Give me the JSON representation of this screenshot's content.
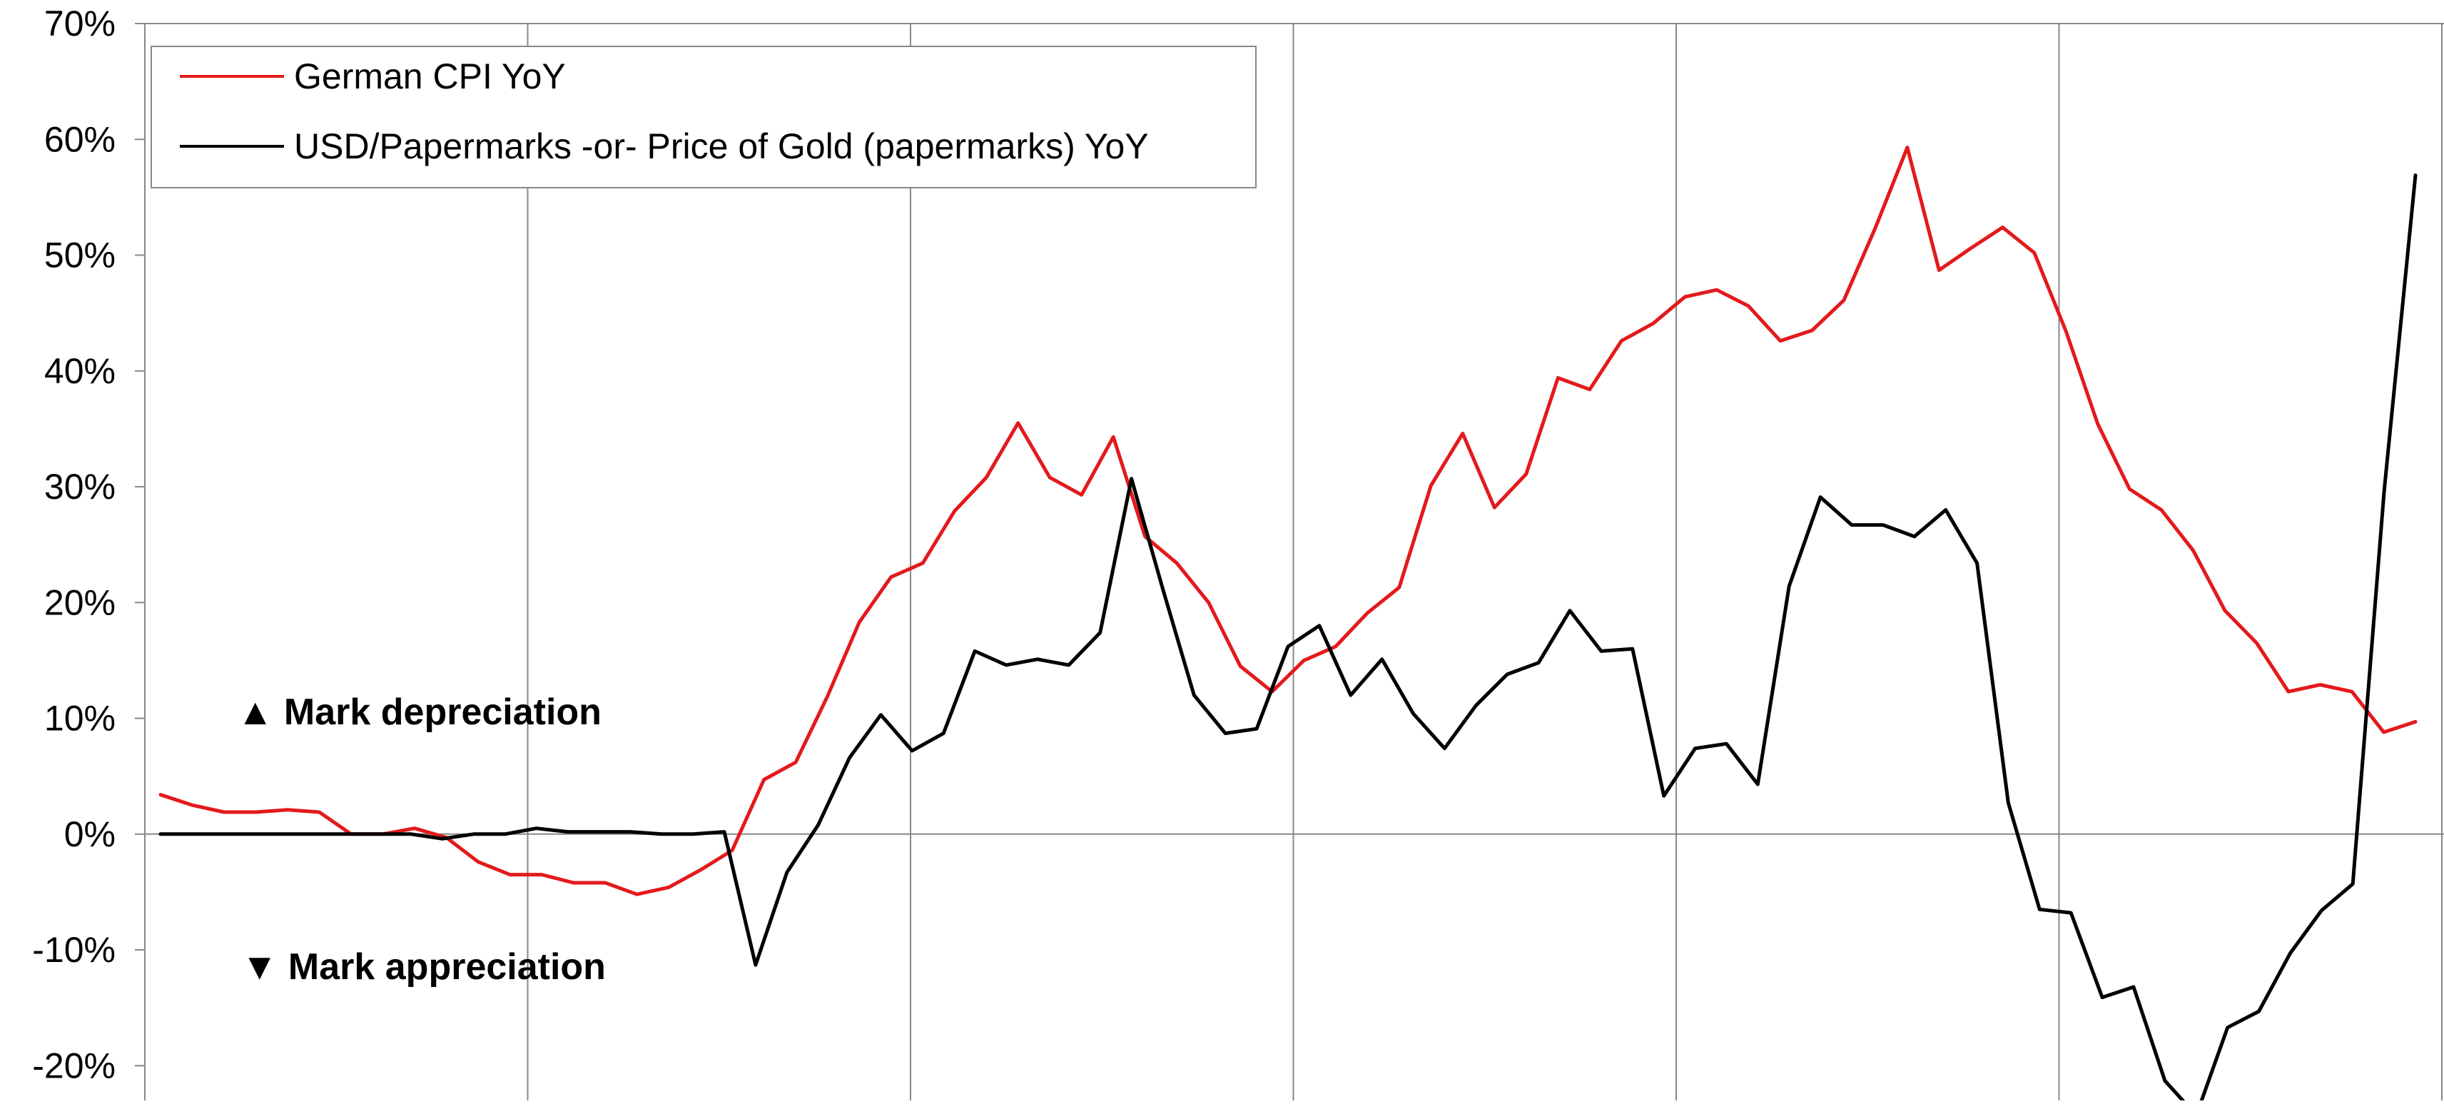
{
  "chart_data": {
    "type": "line",
    "title": "",
    "xlabel": "",
    "ylabel": "",
    "y_unit": "%",
    "ylim": [
      -23,
      70
    ],
    "yticks": [
      70,
      60,
      50,
      40,
      30,
      20,
      10,
      0,
      -10,
      -20
    ],
    "ytick_labels": [
      "70%",
      "60%",
      "50%",
      "40%",
      "30%",
      "20%",
      "10%",
      "0%",
      "-10%",
      "-20%"
    ],
    "vertical_gridlines": 6,
    "grid": true,
    "legend_position": "top-left",
    "series": [
      {
        "name": "German CPI YoY",
        "color": "#e31a1c",
        "values": [
          3.4,
          2.5,
          1.9,
          1.9,
          2.1,
          1.9,
          0.0,
          0.0,
          0.5,
          -0.3,
          -2.4,
          -3.5,
          -3.5,
          -4.2,
          -4.2,
          -5.2,
          -4.6,
          -3.1,
          -1.4,
          4.7,
          6.2,
          11.9,
          18.3,
          22.2,
          23.4,
          27.9,
          30.8,
          35.5,
          30.8,
          29.3,
          34.3,
          25.7,
          23.4,
          20.0,
          14.5,
          12.3,
          15.0,
          16.2,
          19.1,
          21.3,
          30.1,
          34.6,
          28.2,
          31.1,
          39.4,
          38.4,
          42.6,
          44.1,
          46.4,
          47.0,
          45.6,
          42.6,
          43.5,
          46.1,
          52.4,
          59.3,
          48.7,
          50.6,
          52.4,
          50.2,
          43.4,
          35.4,
          29.8,
          28.0,
          24.5,
          19.3,
          16.5,
          12.3,
          12.9,
          12.3,
          8.8,
          9.7
        ]
      },
      {
        "name": "USD/Papermarks -or- Price of Gold (papermarks) YoY",
        "color": "#000000",
        "values": [
          0,
          0,
          0,
          0,
          0,
          0,
          0,
          0,
          0,
          -0.4,
          0,
          0,
          0.5,
          0.2,
          0.2,
          0.2,
          0,
          0,
          0.2,
          -11.3,
          -3.3,
          0.8,
          6.6,
          10.3,
          7.2,
          8.7,
          15.8,
          14.6,
          15.1,
          14.6,
          17.4,
          30.7,
          21.2,
          12.0,
          8.7,
          9.1,
          16.2,
          18.0,
          12.0,
          15.1,
          10.4,
          7.4,
          11.1,
          13.8,
          14.8,
          19.3,
          15.8,
          16.0,
          3.3,
          7.4,
          7.8,
          4.3,
          21.4,
          29.1,
          26.7,
          26.7,
          25.7,
          28.0,
          23.4,
          2.7,
          -6.5,
          -6.8,
          -14.1,
          -13.2,
          -21.3,
          -24.3,
          -16.7,
          -15.3,
          -10.3,
          -6.6,
          -4.3,
          29.6,
          56.9
        ]
      }
    ],
    "annotations": [
      "▲ Mark depreciation",
      "▼ Mark appreciation"
    ]
  }
}
